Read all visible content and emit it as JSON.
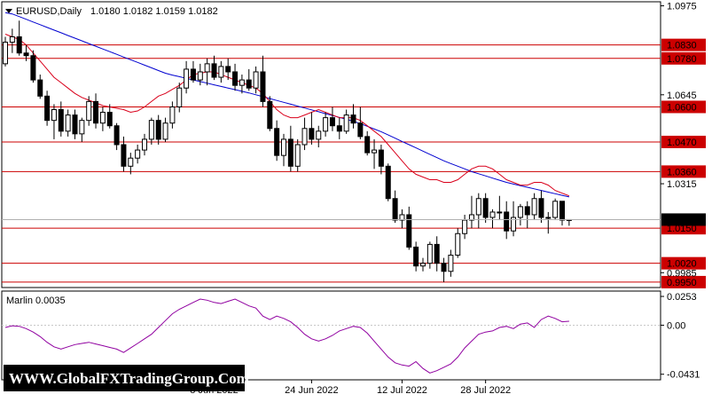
{
  "chart_data": [
    {
      "type": "candlestick",
      "title": "EURUSD,Daily",
      "ohlc_label": "1.0180 1.0182 1.0159 1.0182",
      "ylim": [
        0.993,
        1.099
      ],
      "y_ticks": [
        "1.0975",
        "1.0645",
        "1.0315",
        "0.9985"
      ],
      "current_price": "1.0182",
      "levels": [
        {
          "value": 1.083,
          "label": "1.0830"
        },
        {
          "value": 1.078,
          "label": "1.0780"
        },
        {
          "value": 1.06,
          "label": "1.0600"
        },
        {
          "value": 1.047,
          "label": "1.0470"
        },
        {
          "value": 1.036,
          "label": "1.0360"
        },
        {
          "value": 1.015,
          "label": "1.0150"
        },
        {
          "value": 1.002,
          "label": "1.0020"
        },
        {
          "value": 0.995,
          "label": "0.9950"
        }
      ],
      "level_color": "#cc0000",
      "candles": [
        [
          1.076,
          1.086,
          1.075,
          1.084
        ],
        [
          1.084,
          1.089,
          1.08,
          1.086
        ],
        [
          1.086,
          1.092,
          1.079,
          1.08
        ],
        [
          1.08,
          1.083,
          1.077,
          1.079
        ],
        [
          1.079,
          1.081,
          1.069,
          1.07
        ],
        [
          1.07,
          1.072,
          1.063,
          1.064
        ],
        [
          1.064,
          1.066,
          1.053,
          1.055
        ],
        [
          1.055,
          1.061,
          1.048,
          1.059
        ],
        [
          1.059,
          1.062,
          1.049,
          1.051
        ],
        [
          1.051,
          1.059,
          1.049,
          1.057
        ],
        [
          1.057,
          1.059,
          1.048,
          1.05
        ],
        [
          1.05,
          1.056,
          1.047,
          1.055
        ],
        [
          1.055,
          1.064,
          1.053,
          1.062
        ],
        [
          1.062,
          1.065,
          1.052,
          1.054
        ],
        [
          1.054,
          1.06,
          1.051,
          1.058
        ],
        [
          1.058,
          1.061,
          1.052,
          1.053
        ],
        [
          1.053,
          1.054,
          1.044,
          1.046
        ],
        [
          1.046,
          1.049,
          1.036,
          1.038
        ],
        [
          1.038,
          1.043,
          1.035,
          1.041
        ],
        [
          1.041,
          1.046,
          1.039,
          1.044
        ],
        [
          1.044,
          1.05,
          1.042,
          1.048
        ],
        [
          1.048,
          1.056,
          1.046,
          1.055
        ],
        [
          1.055,
          1.057,
          1.046,
          1.048
        ],
        [
          1.048,
          1.056,
          1.047,
          1.054
        ],
        [
          1.054,
          1.062,
          1.052,
          1.06
        ],
        [
          1.06,
          1.069,
          1.058,
          1.067
        ],
        [
          1.067,
          1.077,
          1.065,
          1.074
        ],
        [
          1.074,
          1.077,
          1.069,
          1.07
        ],
        [
          1.07,
          1.076,
          1.068,
          1.073
        ],
        [
          1.073,
          1.078,
          1.068,
          1.076
        ],
        [
          1.076,
          1.079,
          1.07,
          1.071
        ],
        [
          1.071,
          1.077,
          1.069,
          1.075
        ],
        [
          1.075,
          1.078,
          1.07,
          1.073
        ],
        [
          1.073,
          1.076,
          1.066,
          1.068
        ],
        [
          1.068,
          1.072,
          1.065,
          1.07
        ],
        [
          1.07,
          1.074,
          1.066,
          1.067
        ],
        [
          1.067,
          1.075,
          1.065,
          1.073
        ],
        [
          1.073,
          1.079,
          1.06,
          1.062
        ],
        [
          1.062,
          1.064,
          1.051,
          1.052
        ],
        [
          1.052,
          1.055,
          1.04,
          1.042
        ],
        [
          1.042,
          1.05,
          1.038,
          1.048
        ],
        [
          1.048,
          1.053,
          1.036,
          1.038
        ],
        [
          1.038,
          1.048,
          1.036,
          1.046
        ],
        [
          1.046,
          1.056,
          1.044,
          1.052
        ],
        [
          1.052,
          1.058,
          1.046,
          1.048
        ],
        [
          1.048,
          1.053,
          1.045,
          1.051
        ],
        [
          1.051,
          1.058,
          1.049,
          1.056
        ],
        [
          1.056,
          1.06,
          1.051,
          1.053
        ],
        [
          1.053,
          1.056,
          1.048,
          1.051
        ],
        [
          1.051,
          1.059,
          1.05,
          1.057
        ],
        [
          1.057,
          1.061,
          1.052,
          1.054
        ],
        [
          1.054,
          1.06,
          1.048,
          1.049
        ],
        [
          1.049,
          1.051,
          1.042,
          1.043
        ],
        [
          1.043,
          1.048,
          1.037,
          1.044
        ],
        [
          1.044,
          1.046,
          1.035,
          1.038
        ],
        [
          1.038,
          1.039,
          1.025,
          1.026
        ],
        [
          1.026,
          1.029,
          1.017,
          1.018
        ],
        [
          1.018,
          1.022,
          1.015,
          1.02
        ],
        [
          1.02,
          1.023,
          1.007,
          1.008
        ],
        [
          1.008,
          1.01,
          0.999,
          1.001
        ],
        [
          1.001,
          1.004,
          0.999,
          1.002
        ],
        [
          1.002,
          1.01,
          1.0,
          1.009
        ],
        [
          1.009,
          1.012,
          0.999,
          1.002
        ],
        [
          1.002,
          1.004,
          0.995,
          0.999
        ],
        [
          0.999,
          1.007,
          0.997,
          1.005
        ],
        [
          1.005,
          1.015,
          1.004,
          1.013
        ],
        [
          1.013,
          1.02,
          1.011,
          1.018
        ],
        [
          1.018,
          1.027,
          1.015,
          1.02
        ],
        [
          1.02,
          1.028,
          1.015,
          1.026
        ],
        [
          1.026,
          1.028,
          1.017,
          1.019
        ],
        [
          1.019,
          1.022,
          1.015,
          1.021
        ],
        [
          1.021,
          1.027,
          1.018,
          1.021
        ],
        [
          1.021,
          1.025,
          1.011,
          1.014
        ],
        [
          1.014,
          1.025,
          1.012,
          1.019
        ],
        [
          1.019,
          1.024,
          1.016,
          1.023
        ],
        [
          1.023,
          1.025,
          1.015,
          1.02
        ],
        [
          1.02,
          1.028,
          1.018,
          1.026
        ],
        [
          1.026,
          1.029,
          1.017,
          1.019
        ],
        [
          1.019,
          1.021,
          1.013,
          1.019
        ],
        [
          1.019,
          1.026,
          1.018,
          1.025
        ],
        [
          1.025,
          1.025,
          1.016,
          1.018
        ],
        [
          1.018,
          1.0182,
          1.0159,
          1.0182
        ]
      ],
      "ma_fast_color": "#d9001b",
      "ma_slow_color": "#0000d0",
      "ma_fast": [
        1.087,
        1.086,
        1.085,
        1.083,
        1.08,
        1.077,
        1.074,
        1.071,
        1.069,
        1.067,
        1.065,
        1.0635,
        1.0625,
        1.0615,
        1.0605,
        1.06,
        1.0595,
        1.059,
        1.058,
        1.0585,
        1.06,
        1.062,
        1.064,
        1.065,
        1.0665,
        1.068,
        1.07,
        1.072,
        1.0725,
        1.073,
        1.073,
        1.072,
        1.071,
        1.07,
        1.069,
        1.068,
        1.067,
        1.065,
        1.062,
        1.059,
        1.057,
        1.056,
        1.056,
        1.057,
        1.058,
        1.059,
        1.058,
        1.057,
        1.056,
        1.056,
        1.056,
        1.055,
        1.053,
        1.051,
        1.049,
        1.046,
        1.043,
        1.04,
        1.037,
        1.035,
        1.034,
        1.033,
        1.033,
        1.032,
        1.032,
        1.033,
        1.035,
        1.037,
        1.038,
        1.038,
        1.037,
        1.035,
        1.033,
        1.032,
        1.031,
        1.031,
        1.032,
        1.032,
        1.031,
        1.029,
        1.028,
        1.027
      ],
      "ma_slow": [
        1.095,
        1.0945,
        1.0935,
        1.0925,
        1.0915,
        1.0905,
        1.0895,
        1.0885,
        1.0875,
        1.0865,
        1.0855,
        1.0845,
        1.0835,
        1.0825,
        1.0815,
        1.0805,
        1.0795,
        1.0785,
        1.0775,
        1.0765,
        1.0755,
        1.0745,
        1.0735,
        1.0725,
        1.0718,
        1.0712,
        1.0706,
        1.07,
        1.0694,
        1.0688,
        1.0682,
        1.0676,
        1.067,
        1.0664,
        1.0658,
        1.0652,
        1.0645,
        1.0638,
        1.0631,
        1.0624,
        1.0617,
        1.061,
        1.0603,
        1.0596,
        1.0589,
        1.0582,
        1.0575,
        1.0568,
        1.0561,
        1.0554,
        1.0547,
        1.0538,
        1.0528,
        1.0518,
        1.0508,
        1.0496,
        1.0484,
        1.0472,
        1.046,
        1.0448,
        1.0436,
        1.0424,
        1.0412,
        1.04,
        1.039,
        1.038,
        1.037,
        1.036,
        1.0352,
        1.0344,
        1.0336,
        1.0328,
        1.032,
        1.0314,
        1.0308,
        1.0302,
        1.0296,
        1.029,
        1.0284,
        1.0278,
        1.0272,
        1.0266
      ]
    },
    {
      "type": "line",
      "title": "Marlin 0.0035",
      "ylim": [
        -0.048,
        0.03
      ],
      "y_ticks": [
        "0.0253",
        "0.00",
        "-0.0431"
      ],
      "color": "#9000a0",
      "values": [
        -0.002,
        -0.0005,
        -0.001,
        -0.003,
        -0.006,
        -0.01,
        -0.015,
        -0.019,
        -0.021,
        -0.019,
        -0.017,
        -0.016,
        -0.015,
        -0.0165,
        -0.018,
        -0.0195,
        -0.021,
        -0.024,
        -0.02,
        -0.016,
        -0.012,
        -0.008,
        -0.002,
        0.004,
        0.01,
        0.014,
        0.017,
        0.02,
        0.023,
        0.022,
        0.02,
        0.019,
        0.021,
        0.023,
        0.02,
        0.017,
        0.015,
        0.008,
        0.005,
        0.008,
        0.006,
        0.003,
        -0.002,
        -0.008,
        -0.012,
        -0.014,
        -0.012,
        -0.009,
        -0.005,
        -0.003,
        -0.001,
        -0.002,
        -0.007,
        -0.014,
        -0.021,
        -0.028,
        -0.033,
        -0.035,
        -0.036,
        -0.032,
        -0.038,
        -0.042,
        -0.04,
        -0.037,
        -0.034,
        -0.028,
        -0.02,
        -0.014,
        -0.008,
        -0.006,
        -0.005,
        -0.002,
        -0.001,
        -0.003,
        0.001,
        0.002,
        -0.002,
        0.005,
        0.008,
        0.006,
        0.003,
        0.0035
      ]
    }
  ],
  "x_ticks": [
    {
      "label": "8 Jun 2022",
      "index": 30
    },
    {
      "label": "24 Jun 2022",
      "index": 44
    },
    {
      "label": "12 Jul 2022",
      "index": 57
    },
    {
      "label": "28 Jul 2022",
      "index": 69
    }
  ],
  "watermark": "WWW.GlobalFXTradingGroup.Com"
}
